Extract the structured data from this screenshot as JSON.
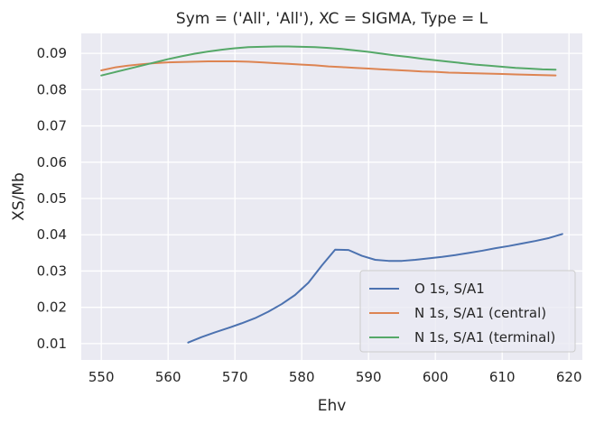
{
  "chart_data": {
    "type": "line",
    "title": "Sym = ('All', 'All'), XC = SIGMA, Type = L",
    "xlabel": "Ehv",
    "ylabel": "XS/Mb",
    "xlim": [
      547,
      622
    ],
    "ylim": [
      0.0055,
      0.0955
    ],
    "xticks": [
      550,
      560,
      570,
      580,
      590,
      600,
      610,
      620
    ],
    "yticks": [
      0.01,
      0.02,
      0.03,
      0.04,
      0.05,
      0.06,
      0.07,
      0.08,
      0.09
    ],
    "xtick_labels": [
      "550",
      "560",
      "570",
      "580",
      "590",
      "600",
      "610",
      "620"
    ],
    "ytick_labels": [
      "0.01",
      "0.02",
      "0.03",
      "0.04",
      "0.05",
      "0.06",
      "0.07",
      "0.08",
      "0.09"
    ],
    "grid": true,
    "legend_position": "bottom-right",
    "colors": {
      "plot_background": "#eaeaf2",
      "grid": "#ffffff",
      "text": "#262626"
    },
    "series": [
      {
        "name": "O 1s, S/A1",
        "color": "#4c72b0",
        "x": [
          563,
          565,
          567,
          569,
          571,
          573,
          575,
          577,
          579,
          581,
          583,
          585,
          587,
          589,
          591,
          593,
          595,
          597,
          599,
          601,
          603,
          605,
          607,
          609,
          611,
          613,
          615,
          617,
          619
        ],
        "y": [
          0.0103,
          0.0118,
          0.0131,
          0.0143,
          0.0156,
          0.017,
          0.0188,
          0.0209,
          0.0234,
          0.0268,
          0.0315,
          0.0359,
          0.0358,
          0.0342,
          0.0331,
          0.0328,
          0.0328,
          0.0331,
          0.0335,
          0.0339,
          0.0344,
          0.035,
          0.0356,
          0.0363,
          0.0369,
          0.0376,
          0.0383,
          0.0391,
          0.0402
        ]
      },
      {
        "name": "N 1s, S/A1 (central)",
        "color": "#dd8452",
        "x": [
          550,
          552,
          554,
          556,
          558,
          560,
          562,
          564,
          566,
          568,
          570,
          572,
          574,
          576,
          578,
          580,
          582,
          584,
          586,
          588,
          590,
          592,
          594,
          596,
          598,
          600,
          602,
          604,
          606,
          608,
          610,
          612,
          614,
          616,
          618
        ],
        "y": [
          0.0853,
          0.0861,
          0.0866,
          0.087,
          0.0873,
          0.0875,
          0.0876,
          0.0877,
          0.0878,
          0.0878,
          0.0878,
          0.0877,
          0.0875,
          0.0873,
          0.0871,
          0.0869,
          0.0867,
          0.0864,
          0.0862,
          0.086,
          0.0858,
          0.0856,
          0.0854,
          0.0852,
          0.085,
          0.0849,
          0.0847,
          0.0846,
          0.0845,
          0.0844,
          0.0843,
          0.0842,
          0.0841,
          0.084,
          0.0839
        ]
      },
      {
        "name": "N 1s, S/A1 (terminal)",
        "color": "#55a868",
        "x": [
          550,
          552,
          554,
          556,
          558,
          560,
          562,
          564,
          566,
          568,
          570,
          572,
          574,
          576,
          578,
          580,
          582,
          584,
          586,
          588,
          590,
          592,
          594,
          596,
          598,
          600,
          602,
          604,
          606,
          608,
          610,
          612,
          614,
          616,
          618
        ],
        "y": [
          0.0839,
          0.0848,
          0.0857,
          0.0866,
          0.0875,
          0.0884,
          0.0892,
          0.0899,
          0.0905,
          0.091,
          0.0914,
          0.0917,
          0.0918,
          0.0919,
          0.0919,
          0.0918,
          0.0917,
          0.0915,
          0.0912,
          0.0908,
          0.0904,
          0.0899,
          0.0894,
          0.089,
          0.0885,
          0.0881,
          0.0877,
          0.0873,
          0.0869,
          0.0866,
          0.0863,
          0.086,
          0.0858,
          0.0856,
          0.0855
        ]
      }
    ]
  }
}
